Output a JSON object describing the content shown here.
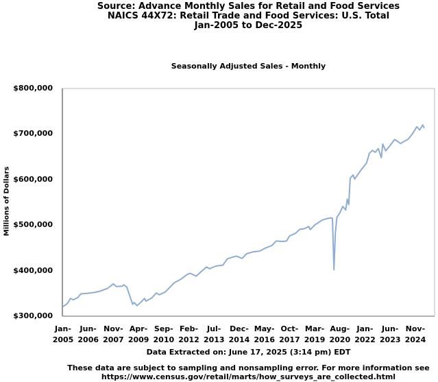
{
  "chart_data": {
    "type": "line",
    "title_lines": [
      "Source: Advance Monthly Sales for Retail and Food Services",
      "NAICS 44X72: Retail Trade and Food Services: U.S. Total",
      "Jan-2005 to Dec-2025"
    ],
    "subtitle": "Seasonally Adjusted Sales - Monthly",
    "ylabel": "Millions of Dollars",
    "xlabel": "Data Extracted on: June 17, 2025 (3:14 pm) EDT",
    "ylim": [
      300000,
      800000
    ],
    "xlim": [
      "2005-01",
      "2025-12"
    ],
    "y_ticks": [
      {
        "value": 300000,
        "label": "$300,000"
      },
      {
        "value": 400000,
        "label": "$400,000"
      },
      {
        "value": 500000,
        "label": "$500,000"
      },
      {
        "value": 600000,
        "label": "$600,000"
      },
      {
        "value": 700000,
        "label": "$700,000"
      },
      {
        "value": 800000,
        "label": "$800,000"
      }
    ],
    "x_ticks": [
      {
        "month": 0,
        "l1": "Jan-",
        "l2": "2005"
      },
      {
        "month": 17,
        "l1": "Jun-",
        "l2": "2006"
      },
      {
        "month": 34,
        "l1": "Nov-",
        "l2": "2007"
      },
      {
        "month": 51,
        "l1": "Apr-",
        "l2": "2009"
      },
      {
        "month": 68,
        "l1": "Sep-",
        "l2": "2010"
      },
      {
        "month": 85,
        "l1": "Feb-",
        "l2": "2012"
      },
      {
        "month": 102,
        "l1": "Jul-",
        "l2": "2013"
      },
      {
        "month": 119,
        "l1": "Dec-",
        "l2": "2014"
      },
      {
        "month": 136,
        "l1": "May-",
        "l2": "2016"
      },
      {
        "month": 153,
        "l1": "Oct-",
        "l2": "2017"
      },
      {
        "month": 170,
        "l1": "Mar-",
        "l2": "2019"
      },
      {
        "month": 187,
        "l1": "Aug-",
        "l2": "2020"
      },
      {
        "month": 204,
        "l1": "Jan-",
        "l2": "2022"
      },
      {
        "month": 221,
        "l1": "Jun-",
        "l2": "2023"
      },
      {
        "month": 238,
        "l1": "Nov-",
        "l2": "2024"
      }
    ],
    "series": [
      {
        "name": "Retail Trade and Food Services",
        "color": "#8eadd4",
        "points_month_index_from_jan2005": [
          [
            0,
            321000
          ],
          [
            3,
            328000
          ],
          [
            5,
            339000
          ],
          [
            7,
            336000
          ],
          [
            10,
            341000
          ],
          [
            12,
            349000
          ],
          [
            16,
            350000
          ],
          [
            21,
            352000
          ],
          [
            25,
            355000
          ],
          [
            30,
            361000
          ],
          [
            34,
            371000
          ],
          [
            36,
            365000
          ],
          [
            40,
            366000
          ],
          [
            41,
            369000
          ],
          [
            43,
            364000
          ],
          [
            45,
            345000
          ],
          [
            47,
            326000
          ],
          [
            48,
            330000
          ],
          [
            50,
            323000
          ],
          [
            53,
            332000
          ],
          [
            55,
            339000
          ],
          [
            56,
            333000
          ],
          [
            60,
            340000
          ],
          [
            63,
            351000
          ],
          [
            65,
            347000
          ],
          [
            69,
            353000
          ],
          [
            72,
            363000
          ],
          [
            75,
            373000
          ],
          [
            80,
            382000
          ],
          [
            84,
            392000
          ],
          [
            86,
            394000
          ],
          [
            90,
            388000
          ],
          [
            94,
            400000
          ],
          [
            97,
            408000
          ],
          [
            99,
            404000
          ],
          [
            103,
            410000
          ],
          [
            108,
            412000
          ],
          [
            111,
            426000
          ],
          [
            114,
            429000
          ],
          [
            117,
            432000
          ],
          [
            121,
            427000
          ],
          [
            124,
            437000
          ],
          [
            128,
            441000
          ],
          [
            133,
            443000
          ],
          [
            137,
            450000
          ],
          [
            141,
            455000
          ],
          [
            144,
            465000
          ],
          [
            148,
            464000
          ],
          [
            151,
            465000
          ],
          [
            153,
            476000
          ],
          [
            157,
            482000
          ],
          [
            160,
            491000
          ],
          [
            163,
            492000
          ],
          [
            166,
            497000
          ],
          [
            167,
            490000
          ],
          [
            170,
            500000
          ],
          [
            175,
            511000
          ],
          [
            178,
            514000
          ],
          [
            181,
            516000
          ],
          [
            182,
            515000
          ],
          [
            183,
            402000
          ],
          [
            184,
            484000
          ],
          [
            185,
            517000
          ],
          [
            187,
            527000
          ],
          [
            189,
            541000
          ],
          [
            191,
            533000
          ],
          [
            192,
            557000
          ],
          [
            193,
            545000
          ],
          [
            194,
            603000
          ],
          [
            196,
            610000
          ],
          [
            197,
            601000
          ],
          [
            200,
            615000
          ],
          [
            202,
            624000
          ],
          [
            205,
            636000
          ],
          [
            207,
            658000
          ],
          [
            209,
            664000
          ],
          [
            211,
            660000
          ],
          [
            213,
            668000
          ],
          [
            215,
            648000
          ],
          [
            216,
            678000
          ],
          [
            218,
            663000
          ],
          [
            221,
            675000
          ],
          [
            224,
            688000
          ],
          [
            226,
            684000
          ],
          [
            228,
            679000
          ],
          [
            231,
            685000
          ],
          [
            233,
            688000
          ],
          [
            236,
            700000
          ],
          [
            239,
            716000
          ],
          [
            241,
            709000
          ],
          [
            243,
            720000
          ],
          [
            244,
            713000
          ]
        ]
      }
    ]
  },
  "footer": {
    "line1": "These data are subject to sampling and nonsampling error. For more information see",
    "line2": "https://www.census.gov/retail/marts/how_surveys_are_collected.html"
  }
}
